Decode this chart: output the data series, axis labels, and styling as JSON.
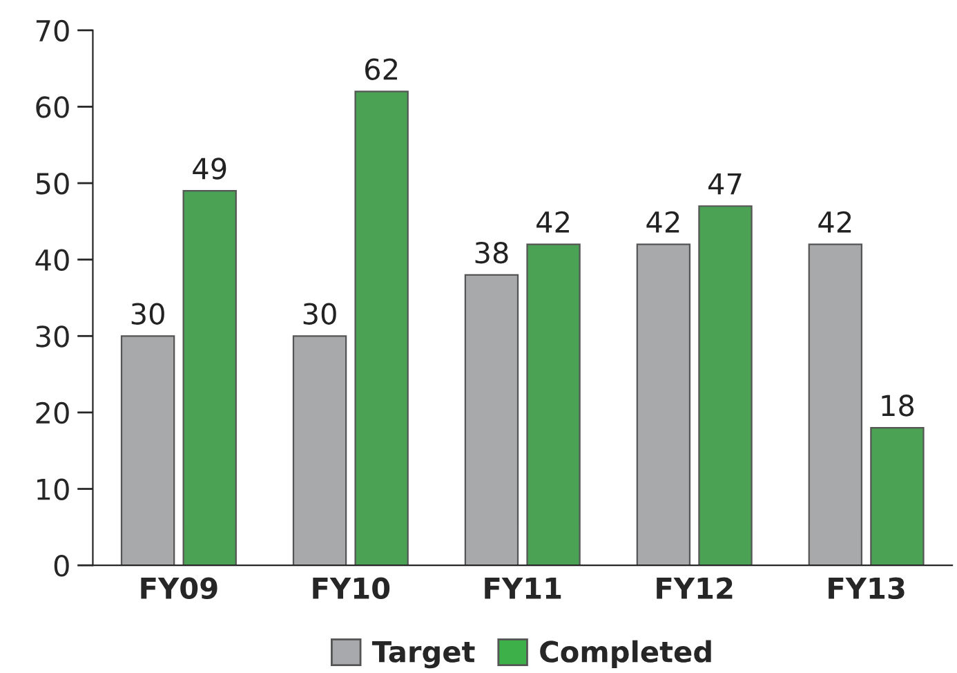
{
  "chart_data": {
    "type": "bar",
    "categories": [
      "FY09",
      "FY10",
      "FY11",
      "FY12",
      "FY13"
    ],
    "series": [
      {
        "name": "Target",
        "color": "#a7a9ac",
        "values": [
          30,
          30,
          38,
          42,
          42
        ]
      },
      {
        "name": "Completed",
        "color": "#3db049",
        "values": [
          49,
          62,
          42,
          47,
          18
        ]
      }
    ],
    "ylim": [
      0,
      70
    ],
    "yticks": [
      0,
      10,
      20,
      30,
      40,
      50,
      60,
      70
    ],
    "data_labels": true,
    "grid": false,
    "legend": "bottom"
  }
}
